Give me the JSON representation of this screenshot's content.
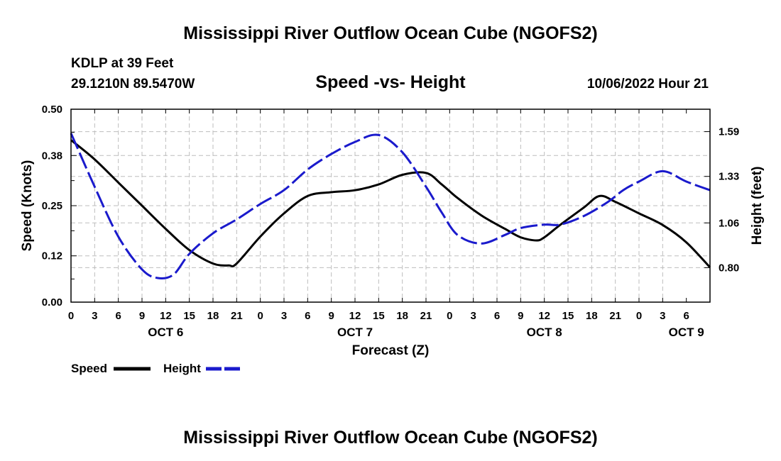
{
  "page": {
    "title": "Mississippi River Outflow Ocean Cube (NGOFS2)",
    "footer_title": "Mississippi River Outflow Ocean Cube (NGOFS2)",
    "station": "KDLP at 39 Feet",
    "coords": "29.1210N  89.5470W",
    "subtitle": "Speed -vs- Height",
    "datetime": "10/06/2022 Hour 21"
  },
  "chart_data": {
    "type": "line",
    "title": "Speed -vs- Height",
    "xlabel": "Forecast (Z)",
    "ylabel_left": "Speed (Knots)",
    "ylabel_right": "Height (feet)",
    "x_hours_range": [
      0,
      81
    ],
    "x_tick_step_hours": 3,
    "x_tick_labels": [
      "0",
      "3",
      "6",
      "9",
      "12",
      "15",
      "18",
      "21",
      "0",
      "3",
      "6",
      "9",
      "12",
      "15",
      "18",
      "21",
      "0",
      "3",
      "6",
      "9",
      "12",
      "15",
      "18",
      "21",
      "0",
      "3",
      "6"
    ],
    "day_labels": [
      {
        "label": "OCT 6",
        "hour": 12
      },
      {
        "label": "OCT 7",
        "hour": 36
      },
      {
        "label": "OCT 8",
        "hour": 60
      },
      {
        "label": "OCT 9",
        "hour": 78
      }
    ],
    "y_left": {
      "min": 0,
      "max": 0.5,
      "ticks": [
        0.0,
        0.12,
        0.25,
        0.38,
        0.5
      ],
      "tick_labels": [
        "0.00",
        "0.12",
        "0.25",
        "0.38",
        "0.50"
      ]
    },
    "y_right": {
      "min": 0.6,
      "max": 1.72,
      "ticks": [
        0.8,
        1.06,
        1.33,
        1.59
      ],
      "tick_labels": [
        "0.80",
        "1.06",
        "1.33",
        "1.59"
      ]
    },
    "grid": true,
    "legend_position": "bottom-left",
    "series": [
      {
        "name": "Speed",
        "axis": "left",
        "color": "#000000",
        "style": "solid",
        "x": [
          0,
          3,
          6,
          9,
          12,
          15,
          18,
          20,
          21,
          24,
          27,
          30,
          33,
          36,
          39,
          42,
          45,
          47,
          49,
          52,
          55,
          57,
          59,
          60,
          62,
          65,
          67,
          69,
          72,
          75,
          78,
          81
        ],
        "values": [
          0.42,
          0.37,
          0.31,
          0.25,
          0.19,
          0.135,
          0.1,
          0.095,
          0.1,
          0.17,
          0.23,
          0.275,
          0.285,
          0.29,
          0.305,
          0.33,
          0.335,
          0.305,
          0.27,
          0.225,
          0.19,
          0.168,
          0.16,
          0.168,
          0.2,
          0.245,
          0.275,
          0.26,
          0.23,
          0.2,
          0.155,
          0.09
        ]
      },
      {
        "name": "Height",
        "axis": "right",
        "color": "#1a1acc",
        "style": "dashed",
        "x": [
          0,
          3,
          6,
          9,
          11,
          13,
          15,
          18,
          21,
          24,
          27,
          30,
          33,
          36,
          39,
          42,
          45,
          47,
          49,
          52,
          55,
          57,
          60,
          62,
          65,
          68,
          70,
          72,
          75,
          78,
          81
        ],
        "values": [
          1.58,
          1.27,
          0.98,
          0.79,
          0.74,
          0.76,
          0.88,
          1.0,
          1.08,
          1.17,
          1.25,
          1.37,
          1.46,
          1.53,
          1.57,
          1.47,
          1.27,
          1.12,
          0.99,
          0.94,
          0.99,
          1.03,
          1.05,
          1.05,
          1.1,
          1.18,
          1.25,
          1.3,
          1.36,
          1.3,
          1.25
        ]
      }
    ]
  }
}
